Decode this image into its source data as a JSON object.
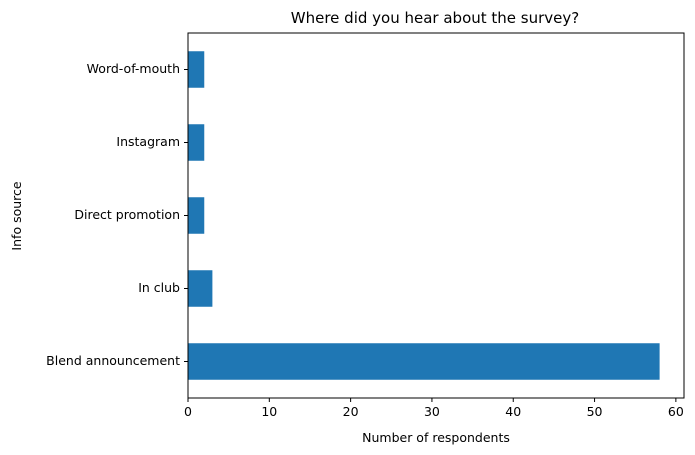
{
  "chart_data": {
    "type": "bar",
    "orientation": "horizontal",
    "title": "Where did you hear about the survey?",
    "xlabel": "Number of respondents",
    "ylabel": "Info source",
    "categories": [
      "Blend announcement",
      "In club",
      "Direct promotion",
      "Instagram",
      "Word-of-mouth"
    ],
    "values": [
      58,
      3,
      2,
      2,
      2
    ],
    "xlim": [
      0,
      61
    ],
    "xticks": [
      0,
      10,
      20,
      30,
      40,
      50,
      60
    ],
    "grid": false,
    "legend": "none",
    "bar_color": "#1f77b4"
  }
}
